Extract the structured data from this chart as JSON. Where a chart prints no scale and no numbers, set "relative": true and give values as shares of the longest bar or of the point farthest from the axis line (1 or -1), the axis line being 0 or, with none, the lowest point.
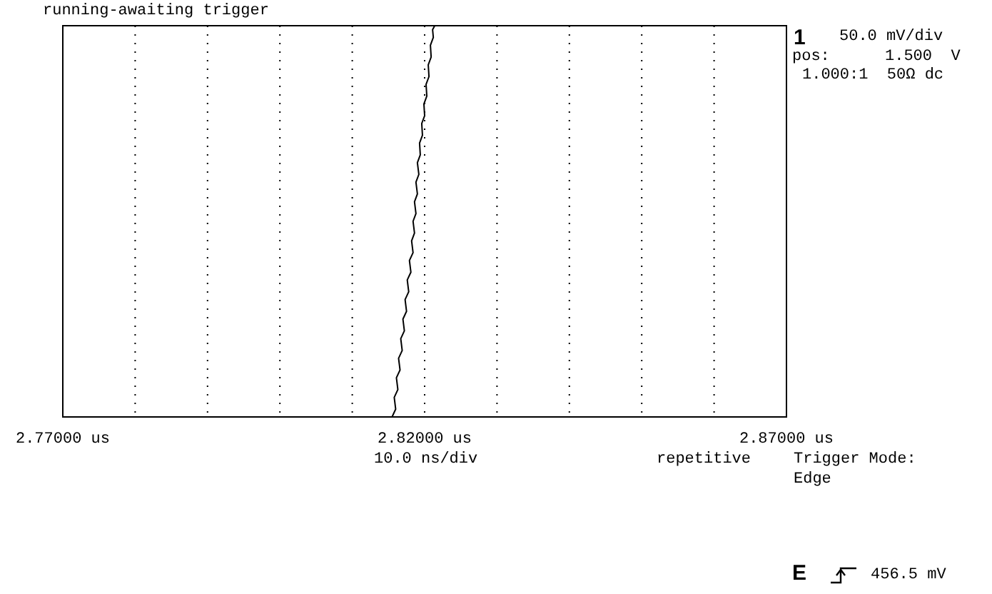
{
  "chart_data": {
    "type": "line",
    "title": "running-awaiting trigger",
    "relative": true,
    "color": "#000000",
    "grid": "x",
    "marker": "none",
    "x": [
      2.8155,
      2.816,
      2.8158,
      2.8163,
      2.8161,
      2.8166,
      2.8164,
      2.8169,
      2.8167,
      2.8172,
      2.817,
      2.8175,
      2.8173,
      2.8178,
      2.8176,
      2.8181,
      2.8179,
      2.8184,
      2.8182,
      2.8186,
      2.8184,
      2.8188,
      2.8186,
      2.819,
      2.8188,
      2.8192,
      2.819,
      2.8194,
      2.8193,
      2.8197,
      2.8196,
      2.82,
      2.8199,
      2.8203,
      2.8202,
      2.8206,
      2.8205,
      2.8209,
      2.8208,
      2.8212,
      2.8211,
      2.8214
    ],
    "values": [
      0.0,
      0.02,
      0.05,
      0.07,
      0.1,
      0.12,
      0.15,
      0.17,
      0.2,
      0.22,
      0.25,
      0.27,
      0.3,
      0.32,
      0.35,
      0.37,
      0.4,
      0.42,
      0.45,
      0.47,
      0.5,
      0.52,
      0.55,
      0.57,
      0.6,
      0.62,
      0.65,
      0.67,
      0.7,
      0.72,
      0.75,
      0.77,
      0.8,
      0.82,
      0.85,
      0.87,
      0.9,
      0.92,
      0.95,
      0.97,
      0.99,
      1.0
    ],
    "xlim": [
      2.77,
      2.87
    ],
    "xticks": [
      {
        "value": 2.77,
        "label": "2.77000 us"
      },
      {
        "value": 2.78,
        "label": null
      },
      {
        "value": 2.79,
        "label": null
      },
      {
        "value": 2.8,
        "label": null
      },
      {
        "value": 2.81,
        "label": null
      },
      {
        "value": 2.82,
        "label": "2.82000 us"
      },
      {
        "value": 2.83,
        "label": null
      },
      {
        "value": 2.84,
        "label": null
      },
      {
        "value": 2.85,
        "label": null
      },
      {
        "value": 2.86,
        "label": null
      },
      {
        "value": 2.87,
        "label": "2.87000 us"
      }
    ],
    "annotations": [
      "1",
      "50.0 mV/div",
      "pos:",
      "1.500  V",
      "1.000:1  50Ω dc",
      "10.0 ns/div",
      "repetitive",
      "Trigger Mode:",
      "Edge",
      "E",
      "456.5 mV"
    ]
  }
}
